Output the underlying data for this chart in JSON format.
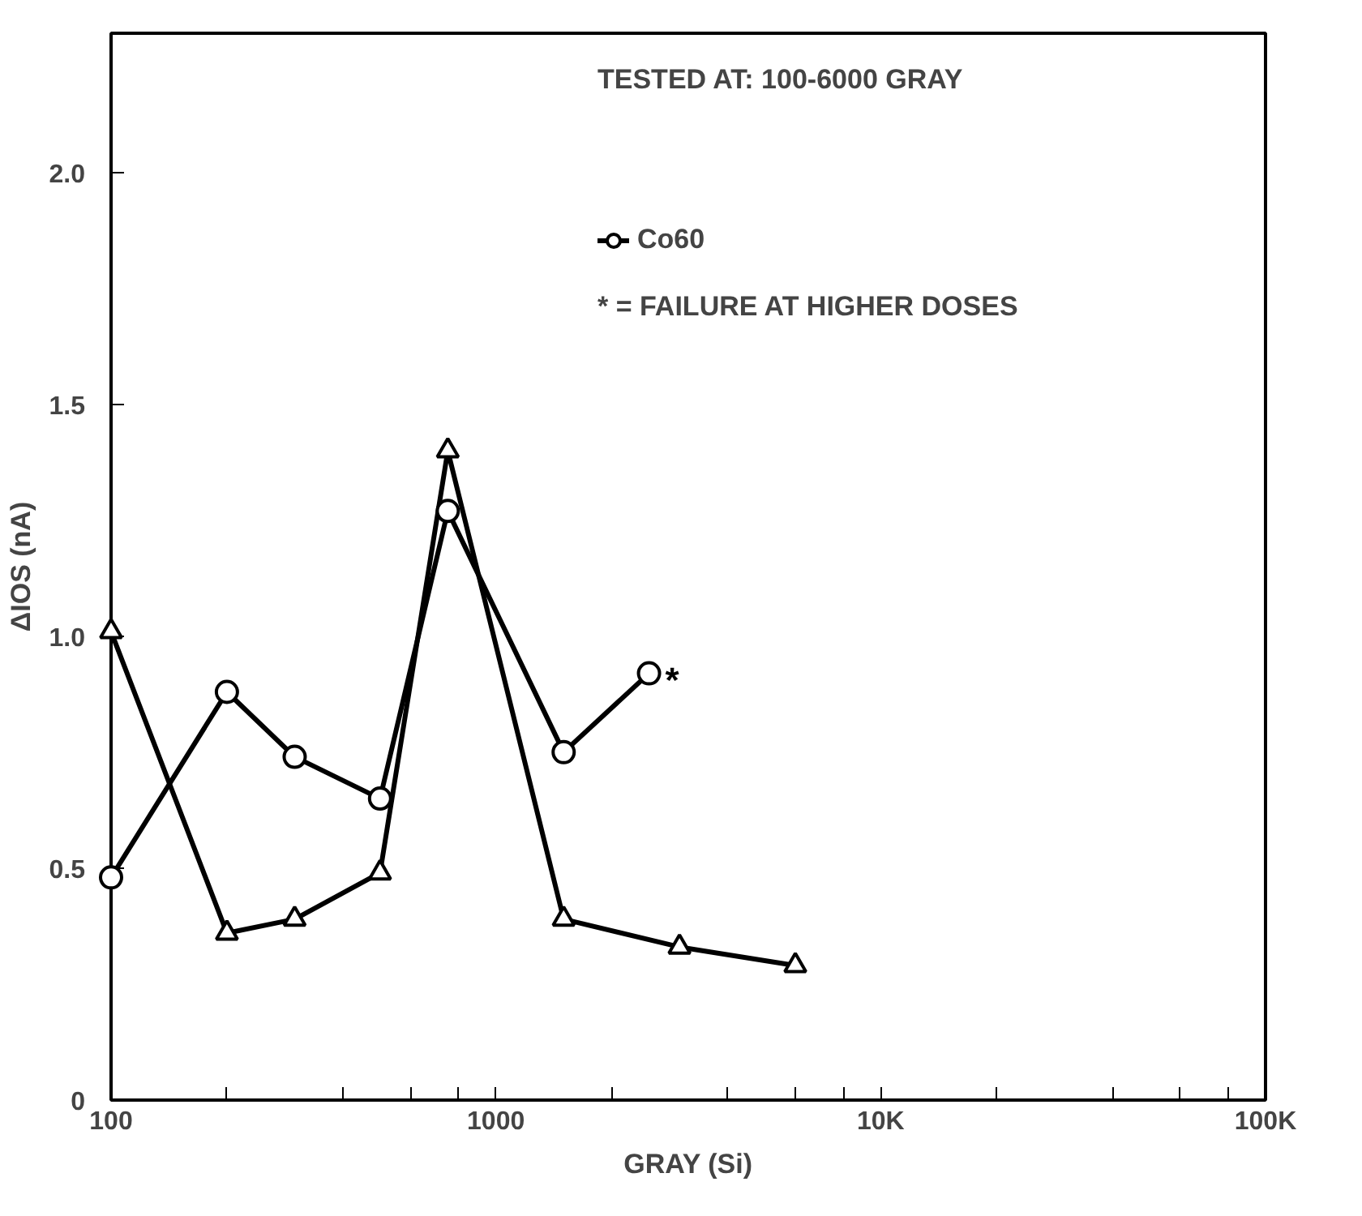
{
  "chart_data": {
    "type": "line",
    "xlabel": "GRAY (Si)",
    "ylabel": "ΔIOS (nA)",
    "log": "x",
    "xlim": [
      100,
      100000
    ],
    "ylim": [
      0,
      2.3
    ],
    "xticks": [
      {
        "value": 100,
        "label": "100"
      },
      {
        "value": 200,
        "label": null
      },
      {
        "value": 400,
        "label": null
      },
      {
        "value": 600,
        "label": null
      },
      {
        "value": 800,
        "label": null
      },
      {
        "value": 1000,
        "label": "1000"
      },
      {
        "value": 2000,
        "label": null
      },
      {
        "value": 4000,
        "label": null
      },
      {
        "value": 6000,
        "label": null
      },
      {
        "value": 8000,
        "label": null
      },
      {
        "value": 10000,
        "label": "10K"
      },
      {
        "value": 20000,
        "label": null
      },
      {
        "value": 40000,
        "label": null
      },
      {
        "value": 60000,
        "label": null
      },
      {
        "value": 80000,
        "label": null
      },
      {
        "value": 100000,
        "label": "100K"
      }
    ],
    "yticks": [
      0,
      0.5,
      {
        "value": 1.0,
        "label": "1.0"
      },
      1.5,
      {
        "value": 2.0,
        "label": "2.0"
      }
    ],
    "grid": false,
    "legend": "top",
    "line_style": "solid",
    "series": [
      {
        "color": "#000000",
        "marker": "triangle",
        "x": [
          100,
          200,
          300,
          500,
          750,
          1500,
          3000,
          6000
        ],
        "values": [
          1.01,
          0.36,
          0.39,
          0.49,
          1.4,
          0.39,
          0.33,
          0.29
        ]
      },
      {
        "name": "Co60",
        "color": "#000000",
        "marker": "circle",
        "x": [
          100,
          200,
          300,
          500,
          750,
          1500,
          2500
        ],
        "values": [
          0.48,
          0.88,
          0.74,
          0.65,
          1.27,
          0.75,
          0.92
        ]
      }
    ],
    "annotations": [
      "TESTED AT:   100-6000 GRAY",
      "* = FAILURE AT HIGHER DOSES",
      "*"
    ]
  }
}
